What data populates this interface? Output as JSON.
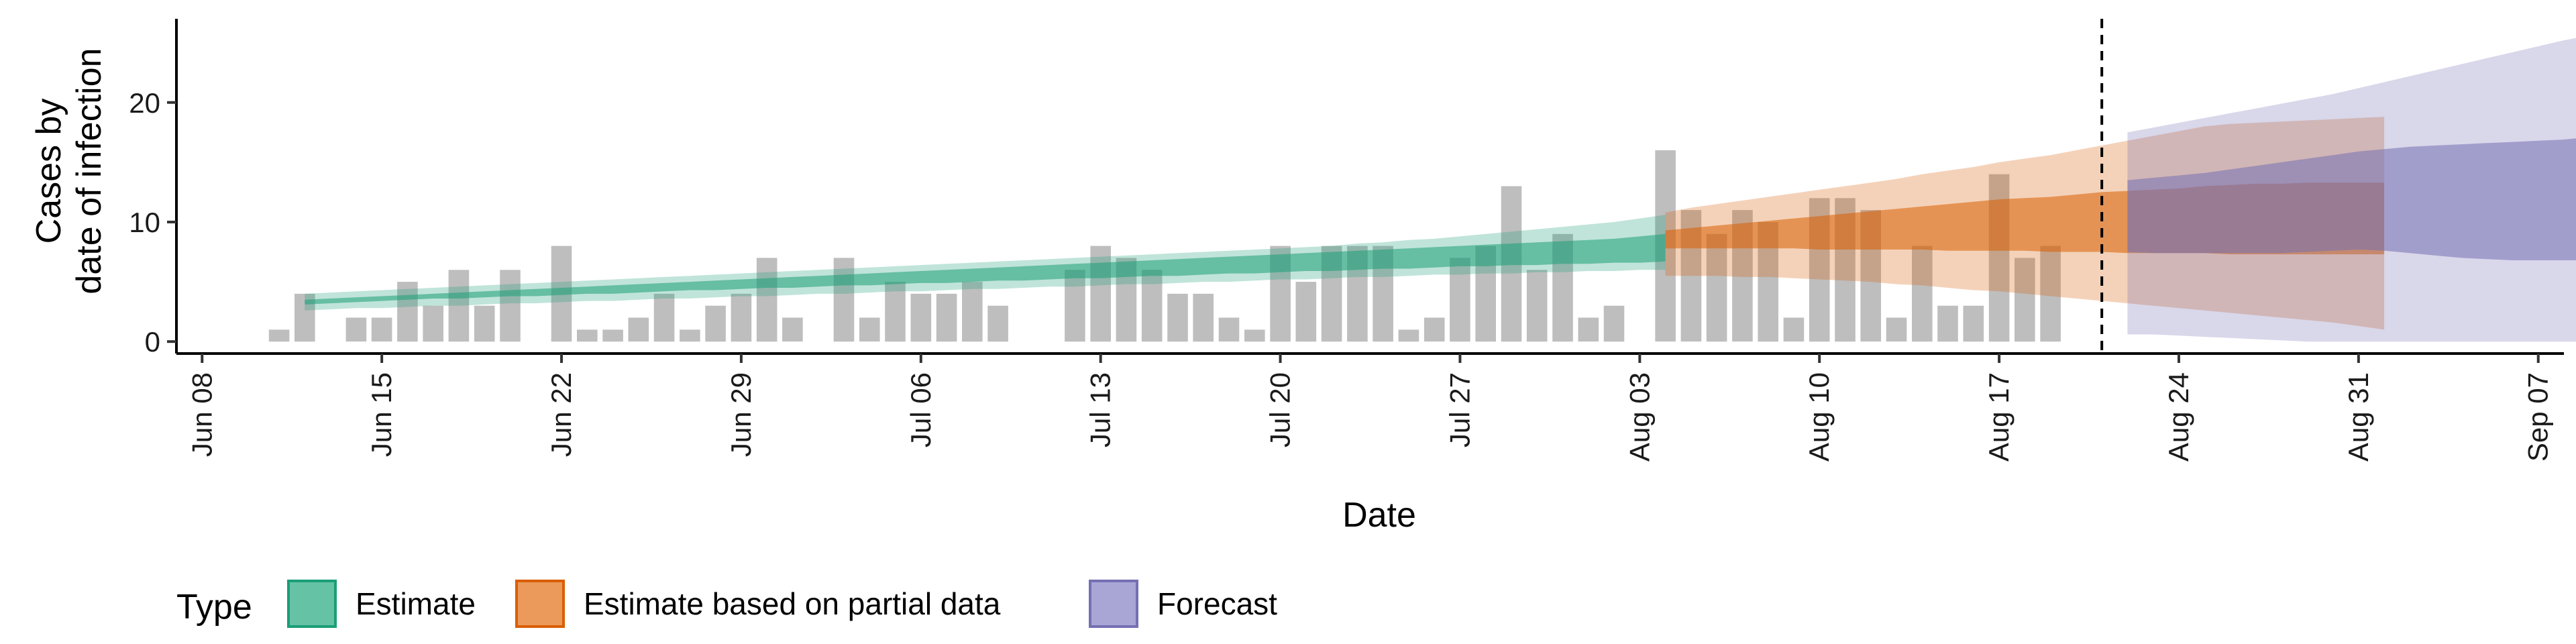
{
  "chart_data": {
    "type": "area",
    "xlabel": "Date",
    "ylabel_lines": [
      "Cases by",
      "date of infection"
    ],
    "ylim": [
      -1,
      27
    ],
    "y_ticks": [
      0,
      10,
      20
    ],
    "x_ticks": [
      "Jun 08",
      "Jun 15",
      "Jun 22",
      "Jun 29",
      "Jul 06",
      "Jul 13",
      "Jul 20",
      "Jul 27",
      "Aug 03",
      "Aug 10",
      "Aug 17",
      "Aug 24",
      "Aug 31",
      "Sep 07"
    ],
    "x_start": "2020-06-07",
    "x_end": "2020-09-08",
    "vline_date": "2020-08-21",
    "bars": {
      "start_date": "2020-06-11",
      "values": [
        1,
        4,
        0,
        2,
        2,
        5,
        3,
        6,
        3,
        6,
        0,
        8,
        1,
        1,
        2,
        4,
        1,
        3,
        4,
        7,
        2,
        0,
        7,
        2,
        5,
        4,
        4,
        5,
        3,
        0,
        0,
        6,
        8,
        7,
        6,
        4,
        4,
        2,
        1,
        8,
        5,
        8,
        8,
        8,
        1,
        2,
        7,
        8,
        13,
        6,
        9,
        2,
        3,
        0,
        16,
        11,
        9,
        11,
        10,
        2,
        12,
        12,
        11,
        2,
        8,
        3,
        3,
        14,
        7,
        8
      ]
    },
    "series": [
      {
        "name": "Estimate",
        "color": "#1b9e77",
        "start_date": "2020-06-12",
        "outer": [
          [
            2.6,
            4.0
          ],
          [
            2.7,
            4.1
          ],
          [
            2.8,
            4.2
          ],
          [
            2.8,
            4.3
          ],
          [
            2.9,
            4.4
          ],
          [
            3.0,
            4.5
          ],
          [
            3.0,
            4.6
          ],
          [
            3.1,
            4.7
          ],
          [
            3.2,
            4.8
          ],
          [
            3.2,
            4.9
          ],
          [
            3.3,
            5.0
          ],
          [
            3.4,
            5.1
          ],
          [
            3.4,
            5.2
          ],
          [
            3.5,
            5.3
          ],
          [
            3.6,
            5.4
          ],
          [
            3.6,
            5.5
          ],
          [
            3.7,
            5.6
          ],
          [
            3.8,
            5.7
          ],
          [
            3.8,
            5.8
          ],
          [
            3.9,
            5.9
          ],
          [
            4.0,
            6.0
          ],
          [
            4.0,
            6.1
          ],
          [
            4.1,
            6.2
          ],
          [
            4.2,
            6.3
          ],
          [
            4.2,
            6.4
          ],
          [
            4.3,
            6.5
          ],
          [
            4.4,
            6.6
          ],
          [
            4.4,
            6.7
          ],
          [
            4.5,
            6.8
          ],
          [
            4.6,
            6.9
          ],
          [
            4.6,
            7.0
          ],
          [
            4.7,
            7.1
          ],
          [
            4.8,
            7.2
          ],
          [
            4.8,
            7.3
          ],
          [
            4.9,
            7.4
          ],
          [
            5.0,
            7.5
          ],
          [
            5.0,
            7.6
          ],
          [
            5.1,
            7.7
          ],
          [
            5.2,
            7.8
          ],
          [
            5.2,
            7.9
          ],
          [
            5.3,
            8.0
          ],
          [
            5.4,
            8.2
          ],
          [
            5.4,
            8.3
          ],
          [
            5.5,
            8.5
          ],
          [
            5.6,
            8.6
          ],
          [
            5.6,
            8.8
          ],
          [
            5.7,
            9.0
          ],
          [
            5.7,
            9.2
          ],
          [
            5.8,
            9.4
          ],
          [
            5.8,
            9.6
          ],
          [
            5.9,
            9.8
          ],
          [
            5.9,
            10.0
          ],
          [
            6.0,
            10.3
          ],
          [
            6.0,
            10.6
          ]
        ],
        "inner": [
          [
            3.1,
            3.5
          ],
          [
            3.2,
            3.6
          ],
          [
            3.3,
            3.7
          ],
          [
            3.4,
            3.8
          ],
          [
            3.5,
            3.9
          ],
          [
            3.6,
            4.0
          ],
          [
            3.6,
            4.1
          ],
          [
            3.7,
            4.2
          ],
          [
            3.8,
            4.3
          ],
          [
            3.8,
            4.4
          ],
          [
            3.9,
            4.5
          ],
          [
            4.0,
            4.6
          ],
          [
            4.0,
            4.7
          ],
          [
            4.1,
            4.8
          ],
          [
            4.2,
            4.9
          ],
          [
            4.3,
            5.0
          ],
          [
            4.3,
            5.1
          ],
          [
            4.4,
            5.2
          ],
          [
            4.5,
            5.3
          ],
          [
            4.5,
            5.4
          ],
          [
            4.6,
            5.5
          ],
          [
            4.7,
            5.6
          ],
          [
            4.7,
            5.7
          ],
          [
            4.8,
            5.8
          ],
          [
            4.9,
            5.9
          ],
          [
            4.9,
            6.0
          ],
          [
            5.0,
            6.1
          ],
          [
            5.1,
            6.2
          ],
          [
            5.1,
            6.3
          ],
          [
            5.2,
            6.4
          ],
          [
            5.3,
            6.5
          ],
          [
            5.3,
            6.6
          ],
          [
            5.4,
            6.7
          ],
          [
            5.5,
            6.8
          ],
          [
            5.5,
            6.9
          ],
          [
            5.6,
            7.0
          ],
          [
            5.7,
            7.1
          ],
          [
            5.7,
            7.2
          ],
          [
            5.8,
            7.3
          ],
          [
            5.9,
            7.4
          ],
          [
            5.9,
            7.5
          ],
          [
            6.0,
            7.6
          ],
          [
            6.1,
            7.7
          ],
          [
            6.1,
            7.8
          ],
          [
            6.2,
            7.9
          ],
          [
            6.3,
            8.0
          ],
          [
            6.3,
            8.1
          ],
          [
            6.4,
            8.2
          ],
          [
            6.4,
            8.3
          ],
          [
            6.5,
            8.4
          ],
          [
            6.5,
            8.5
          ],
          [
            6.6,
            8.6
          ],
          [
            6.6,
            8.8
          ],
          [
            6.7,
            9.0
          ]
        ]
      },
      {
        "name": "Estimate based on partial data",
        "color": "#d95f02",
        "start_date": "2020-08-04",
        "outer": [
          [
            5.5,
            10.8
          ],
          [
            5.5,
            11.2
          ],
          [
            5.5,
            11.5
          ],
          [
            5.4,
            11.8
          ],
          [
            5.4,
            12.1
          ],
          [
            5.3,
            12.4
          ],
          [
            5.2,
            12.7
          ],
          [
            5.1,
            13.0
          ],
          [
            5.0,
            13.3
          ],
          [
            4.8,
            13.6
          ],
          [
            4.7,
            14.0
          ],
          [
            4.5,
            14.3
          ],
          [
            4.3,
            14.6
          ],
          [
            4.2,
            15.0
          ],
          [
            4.0,
            15.3
          ],
          [
            3.8,
            15.6
          ],
          [
            3.6,
            16.0
          ],
          [
            3.4,
            16.4
          ],
          [
            3.2,
            16.8
          ],
          [
            3.0,
            17.2
          ],
          [
            2.8,
            17.6
          ],
          [
            2.6,
            18.0
          ],
          [
            2.4,
            18.2
          ],
          [
            2.2,
            18.3
          ],
          [
            2.0,
            18.4
          ],
          [
            1.8,
            18.5
          ],
          [
            1.6,
            18.6
          ],
          [
            1.3,
            18.7
          ],
          [
            1.0,
            18.8
          ]
        ],
        "inner": [
          [
            7.8,
            9.3
          ],
          [
            7.8,
            9.5
          ],
          [
            7.8,
            9.7
          ],
          [
            7.8,
            9.9
          ],
          [
            7.8,
            10.1
          ],
          [
            7.8,
            10.3
          ],
          [
            7.7,
            10.5
          ],
          [
            7.7,
            10.7
          ],
          [
            7.7,
            10.9
          ],
          [
            7.7,
            11.1
          ],
          [
            7.7,
            11.3
          ],
          [
            7.6,
            11.5
          ],
          [
            7.6,
            11.7
          ],
          [
            7.6,
            11.9
          ],
          [
            7.6,
            12.0
          ],
          [
            7.5,
            12.1
          ],
          [
            7.5,
            12.3
          ],
          [
            7.5,
            12.5
          ],
          [
            7.4,
            12.6
          ],
          [
            7.4,
            12.7
          ],
          [
            7.4,
            12.8
          ],
          [
            7.4,
            13.0
          ],
          [
            7.3,
            13.1
          ],
          [
            7.3,
            13.2
          ],
          [
            7.3,
            13.2
          ],
          [
            7.3,
            13.3
          ],
          [
            7.3,
            13.3
          ],
          [
            7.3,
            13.3
          ],
          [
            7.3,
            13.3
          ]
        ]
      },
      {
        "name": "Forecast",
        "color": "#7570b3",
        "start_date": "2020-08-22",
        "outer": [
          [
            0.6,
            17.5
          ],
          [
            0.6,
            17.9
          ],
          [
            0.5,
            18.3
          ],
          [
            0.4,
            18.7
          ],
          [
            0.3,
            19.1
          ],
          [
            0.2,
            19.5
          ],
          [
            0.1,
            19.9
          ],
          [
            0.0,
            20.3
          ],
          [
            0.0,
            20.7
          ],
          [
            0.0,
            21.2
          ],
          [
            0.0,
            21.7
          ],
          [
            0.0,
            22.2
          ],
          [
            0.0,
            22.7
          ],
          [
            0.0,
            23.2
          ],
          [
            0.0,
            23.7
          ],
          [
            0.0,
            24.2
          ],
          [
            0.0,
            24.7
          ],
          [
            0.0,
            25.2
          ],
          [
            0.0,
            25.6
          ],
          [
            0.0,
            26.0
          ]
        ],
        "inner": [
          [
            7.5,
            13.5
          ],
          [
            7.4,
            13.7
          ],
          [
            7.4,
            13.9
          ],
          [
            7.4,
            14.1
          ],
          [
            7.4,
            14.4
          ],
          [
            7.4,
            14.7
          ],
          [
            7.4,
            15.0
          ],
          [
            7.5,
            15.3
          ],
          [
            7.6,
            15.6
          ],
          [
            7.7,
            15.9
          ],
          [
            7.6,
            16.1
          ],
          [
            7.4,
            16.3
          ],
          [
            7.2,
            16.4
          ],
          [
            7.0,
            16.5
          ],
          [
            6.9,
            16.6
          ],
          [
            6.8,
            16.7
          ],
          [
            6.8,
            16.8
          ],
          [
            6.8,
            16.9
          ],
          [
            6.8,
            17.1
          ],
          [
            6.7,
            17.3
          ]
        ]
      }
    ],
    "legend": {
      "title": "Type",
      "position": "bottom",
      "items": [
        {
          "label": "Estimate",
          "fill": "#66c2a5",
          "stroke": "#1b9e77"
        },
        {
          "label": "Estimate based on partial data",
          "fill": "#eb9a5c",
          "stroke": "#d95f02"
        },
        {
          "label": "Forecast",
          "fill": "#a9a6d6",
          "stroke": "#7570b3"
        }
      ]
    }
  }
}
